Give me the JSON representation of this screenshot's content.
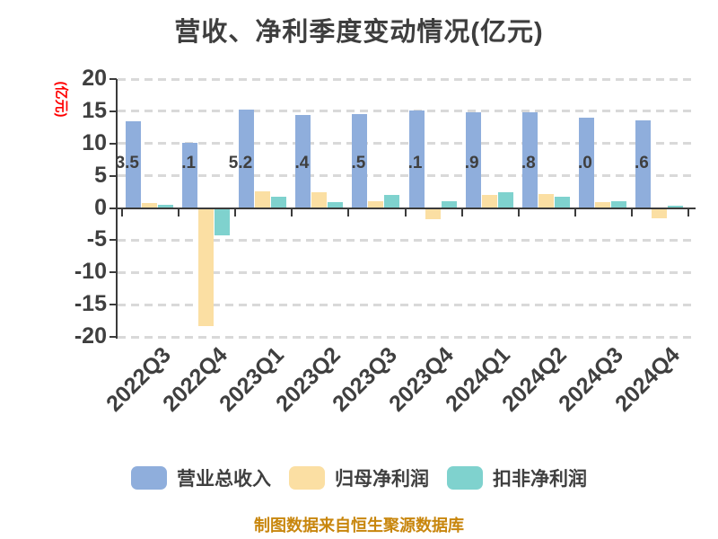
{
  "title": "营收、净利季度变动情况(亿元)",
  "y_axis": {
    "label": "(亿元)",
    "label_color": "#ff0000",
    "ticks": [
      20,
      15,
      10,
      5,
      0,
      -5,
      -10,
      -15,
      -20
    ]
  },
  "legend": {
    "items": [
      {
        "label": "营业总收入",
        "color": "#8faedc"
      },
      {
        "label": "归母净利润",
        "color": "#fbdfa3"
      },
      {
        "label": "扣非净利润",
        "color": "#7fd2ce"
      }
    ]
  },
  "footer": {
    "source_note": "制图数据来自恒生聚源数据库",
    "color": "#c8860d"
  },
  "chart_data": {
    "type": "bar",
    "title": "营收、净利季度变动情况(亿元)",
    "categories": [
      "2022Q3",
      "2022Q4",
      "2023Q1",
      "2023Q2",
      "2023Q3",
      "2023Q4",
      "2024Q1",
      "2024Q2",
      "2024Q3",
      "2024Q4"
    ],
    "series": [
      {
        "name": "营业总收入",
        "color": "#8faedc",
        "values": [
          13.5,
          10.1,
          15.2,
          14.4,
          14.5,
          15.1,
          14.9,
          14.8,
          14.0,
          13.6
        ],
        "visible_bar_labels": [
          "3.5",
          ".1",
          "5.2",
          ".4",
          ".5",
          ".1",
          ".9",
          ".8",
          ".0",
          ".6"
        ]
      },
      {
        "name": "归母净利润",
        "color": "#fbdfa3",
        "values": [
          0.8,
          -18.3,
          2.6,
          2.5,
          1.1,
          -1.7,
          2.0,
          2.2,
          0.9,
          -1.6
        ]
      },
      {
        "name": "扣非净利润",
        "color": "#7fd2ce",
        "values": [
          0.5,
          -4.2,
          1.8,
          0.9,
          2.0,
          1.0,
          2.5,
          1.8,
          1.1,
          0.3
        ]
      }
    ],
    "ylabel": "(亿元)",
    "xlabel": "",
    "ylim": [
      -20,
      20
    ],
    "grid": "horizontal-dashed",
    "legend_position": "bottom",
    "x_tick_label_rotation": -45
  }
}
